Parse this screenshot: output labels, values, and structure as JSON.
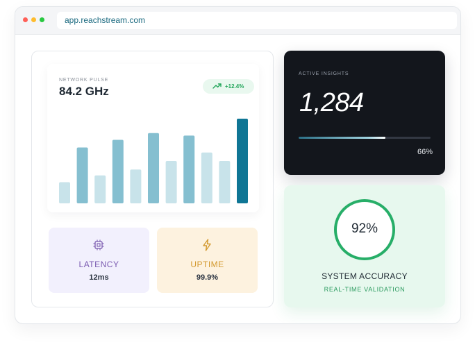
{
  "browser": {
    "url": "app.reachstream.com",
    "window_controls": [
      "close",
      "minimize",
      "maximize"
    ]
  },
  "network_pulse": {
    "label": "NETWORK PULSE",
    "value": "84.2 GHz",
    "trend": "+12.4%",
    "trend_icon": "trend-up-icon",
    "trend_color": "#22a55a"
  },
  "chart_data": {
    "type": "bar",
    "title": "",
    "xlabel": "",
    "ylabel": "",
    "ylim": [
      0,
      100
    ],
    "grid": false,
    "values": [
      25,
      66,
      33,
      75,
      40,
      83,
      50,
      80,
      60,
      50,
      100
    ],
    "colors": [
      "#c8e3ea",
      "#85bfd0",
      "#c8e3ea",
      "#85bfd0",
      "#c8e3ea",
      "#85bfd0",
      "#c8e3ea",
      "#85bfd0",
      "#c8e3ea",
      "#c8e3ea",
      "#0f7695"
    ]
  },
  "stats": {
    "latency": {
      "label": "LATENCY",
      "value": "12ms",
      "icon": "cpu-chip-icon",
      "accent": "#7a5ab0"
    },
    "uptime": {
      "label": "UPTIME",
      "value": "99.9%",
      "icon": "lightning-bolt-icon",
      "accent": "#d39a30"
    }
  },
  "insights": {
    "label": "ACTIVE INSIGHTS",
    "value": "1,284",
    "progress": 0.66,
    "progress_label": "66%"
  },
  "accuracy": {
    "value": "92%",
    "title": "SYSTEM ACCURACY",
    "subtitle": "REAL-TIME VALIDATION",
    "accent": "#27ae68"
  }
}
